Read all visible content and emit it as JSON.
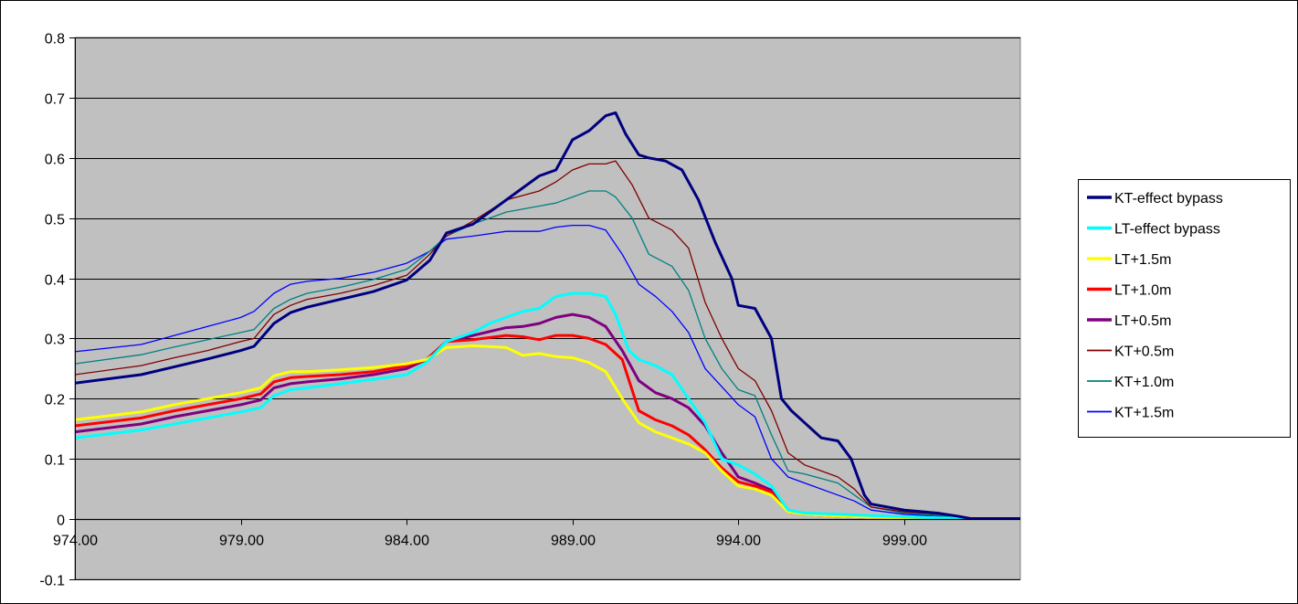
{
  "chart_data": {
    "type": "line",
    "title": "",
    "xlabel": "",
    "ylabel": "",
    "xlim": [
      974,
      1002.5
    ],
    "ylim": [
      -0.1,
      0.8
    ],
    "x_ticks": [
      974,
      979,
      984,
      989,
      994,
      999
    ],
    "x_tick_labels": [
      "974.00",
      "979.00",
      "984.00",
      "989.00",
      "994.00",
      "999.00"
    ],
    "y_ticks": [
      -0.1,
      0,
      0.1,
      0.2,
      0.3,
      0.4,
      0.5,
      0.6,
      0.7,
      0.8
    ],
    "y_tick_labels": [
      "-0.1",
      "0",
      "0.1",
      "0.2",
      "0.3",
      "0.4",
      "0.5",
      "0.6",
      "0.7",
      "0.8"
    ],
    "grid": "horizontal",
    "plot_background": "#c0c0c0",
    "legend_position": "right",
    "series": [
      {
        "name": "KT-effect bypass",
        "color": "#000080",
        "width": 3,
        "x": [
          974,
          976,
          977,
          978,
          979,
          979.4,
          980,
          980.5,
          981,
          982,
          983,
          984,
          984.7,
          985.2,
          986,
          987,
          988,
          988.5,
          989,
          989.5,
          990,
          990.3,
          990.6,
          991,
          991.3,
          991.8,
          992.3,
          992.8,
          993.3,
          993.8,
          994,
          994.5,
          995,
          995.3,
          995.6,
          996,
          996.5,
          997,
          997.4,
          997.8,
          998,
          999,
          1000,
          1000.6,
          1001,
          1002.5
        ],
        "y": [
          0.226,
          0.24,
          0.253,
          0.266,
          0.28,
          0.287,
          0.325,
          0.343,
          0.352,
          0.365,
          0.378,
          0.397,
          0.43,
          0.475,
          0.49,
          0.53,
          0.57,
          0.58,
          0.63,
          0.645,
          0.67,
          0.675,
          0.64,
          0.605,
          0.6,
          0.595,
          0.58,
          0.53,
          0.46,
          0.4,
          0.355,
          0.35,
          0.3,
          0.2,
          0.18,
          0.16,
          0.135,
          0.13,
          0.1,
          0.04,
          0.025,
          0.015,
          0.01,
          0.005,
          0.001,
          0.001
        ]
      },
      {
        "name": "LT-effect bypass",
        "color": "#00ffff",
        "width": 3,
        "x": [
          974,
          976,
          977,
          978,
          979,
          979.6,
          980,
          980.5,
          981,
          982,
          983,
          984,
          984.6,
          985.2,
          986,
          986.5,
          987,
          987.5,
          988,
          988.5,
          989,
          989.5,
          990,
          990.3,
          990.7,
          991,
          991.5,
          992,
          992.5,
          993,
          993.5,
          994,
          994.5,
          995,
          995.5,
          996,
          997,
          998,
          999,
          1000,
          1001,
          1002.5
        ],
        "y": [
          0.135,
          0.148,
          0.158,
          0.168,
          0.178,
          0.185,
          0.205,
          0.215,
          0.218,
          0.225,
          0.232,
          0.24,
          0.26,
          0.295,
          0.31,
          0.325,
          0.335,
          0.345,
          0.35,
          0.37,
          0.375,
          0.375,
          0.37,
          0.34,
          0.28,
          0.265,
          0.255,
          0.24,
          0.2,
          0.16,
          0.1,
          0.09,
          0.075,
          0.055,
          0.015,
          0.01,
          0.008,
          0.006,
          0.004,
          0.002,
          0.001,
          0.001
        ]
      },
      {
        "name": "LT+1.5m",
        "color": "#ffff00",
        "width": 3,
        "x": [
          974,
          976,
          977,
          978,
          979,
          979.6,
          980,
          980.5,
          981,
          982,
          983,
          984,
          984.6,
          985.2,
          986,
          987,
          987.5,
          988,
          988.5,
          989,
          989.5,
          990,
          990.5,
          991,
          991.5,
          992,
          992.5,
          993,
          993.5,
          994,
          994.5,
          995,
          995.5,
          996,
          997,
          998,
          999,
          1000,
          1001,
          1002.5
        ],
        "y": [
          0.165,
          0.178,
          0.19,
          0.2,
          0.21,
          0.218,
          0.238,
          0.245,
          0.245,
          0.248,
          0.252,
          0.258,
          0.265,
          0.285,
          0.288,
          0.285,
          0.272,
          0.275,
          0.27,
          0.268,
          0.26,
          0.245,
          0.2,
          0.16,
          0.145,
          0.135,
          0.125,
          0.11,
          0.08,
          0.055,
          0.05,
          0.04,
          0.012,
          0.008,
          0.005,
          0.003,
          0.002,
          0.001,
          0.001,
          0.001
        ]
      },
      {
        "name": "LT+1.0m",
        "color": "#ff0000",
        "width": 3,
        "x": [
          974,
          976,
          977,
          978,
          979,
          979.6,
          980,
          980.5,
          981,
          982,
          983,
          984,
          984.6,
          985.2,
          986,
          987,
          987.5,
          988,
          988.5,
          989,
          989.5,
          990,
          990.5,
          991,
          991.5,
          992,
          992.5,
          993,
          993.5,
          994,
          994.5,
          995,
          995.5,
          996,
          997,
          998,
          999,
          1000,
          1001,
          1002.5
        ],
        "y": [
          0.155,
          0.168,
          0.18,
          0.19,
          0.2,
          0.208,
          0.228,
          0.235,
          0.237,
          0.24,
          0.245,
          0.255,
          0.265,
          0.295,
          0.298,
          0.305,
          0.303,
          0.298,
          0.305,
          0.305,
          0.3,
          0.29,
          0.265,
          0.18,
          0.165,
          0.155,
          0.14,
          0.115,
          0.085,
          0.062,
          0.055,
          0.045,
          0.012,
          0.008,
          0.005,
          0.003,
          0.002,
          0.001,
          0.001,
          0.001
        ]
      },
      {
        "name": "LT+0.5m",
        "color": "#800080",
        "width": 3,
        "x": [
          974,
          976,
          977,
          978,
          979,
          979.6,
          980,
          980.5,
          981,
          982,
          983,
          984,
          984.6,
          985.2,
          986,
          987,
          987.5,
          988,
          988.5,
          989,
          989.5,
          990,
          990.5,
          991,
          991.5,
          992,
          992.5,
          993,
          993.5,
          994,
          994.5,
          995,
          995.5,
          996,
          997,
          998,
          999,
          1000,
          1001,
          1002.5
        ],
        "y": [
          0.145,
          0.158,
          0.17,
          0.18,
          0.19,
          0.198,
          0.218,
          0.225,
          0.228,
          0.233,
          0.24,
          0.25,
          0.265,
          0.295,
          0.305,
          0.318,
          0.32,
          0.325,
          0.335,
          0.34,
          0.335,
          0.32,
          0.28,
          0.23,
          0.21,
          0.2,
          0.185,
          0.155,
          0.11,
          0.07,
          0.06,
          0.048,
          0.012,
          0.008,
          0.005,
          0.003,
          0.002,
          0.001,
          0.001,
          0.001
        ]
      },
      {
        "name": "KT+0.5m",
        "color": "#800000",
        "width": 1.3,
        "x": [
          974,
          976,
          977,
          978,
          979,
          979.4,
          980,
          980.5,
          981,
          982,
          983,
          984,
          984.7,
          985.2,
          986,
          987,
          988,
          988.5,
          989,
          989.5,
          990,
          990.3,
          990.8,
          991.3,
          992,
          992.5,
          993,
          993.5,
          994,
          994.5,
          995,
          995.5,
          996,
          997,
          997.5,
          998,
          999,
          1000,
          1000.6,
          1001,
          1002.5
        ],
        "y": [
          0.24,
          0.255,
          0.268,
          0.28,
          0.295,
          0.3,
          0.34,
          0.355,
          0.365,
          0.375,
          0.388,
          0.405,
          0.44,
          0.47,
          0.495,
          0.53,
          0.545,
          0.56,
          0.58,
          0.59,
          0.59,
          0.595,
          0.555,
          0.5,
          0.48,
          0.45,
          0.36,
          0.3,
          0.25,
          0.23,
          0.18,
          0.11,
          0.09,
          0.07,
          0.05,
          0.02,
          0.012,
          0.008,
          0.004,
          0.001,
          0.001
        ]
      },
      {
        "name": "KT+1.0m",
        "color": "#008080",
        "width": 1.3,
        "x": [
          974,
          976,
          977,
          978,
          979,
          979.4,
          980,
          980.5,
          981,
          982,
          983,
          984,
          984.7,
          985.2,
          986,
          987,
          988,
          988.5,
          989,
          989.5,
          990,
          990.3,
          990.8,
          991.3,
          992,
          992.5,
          993,
          993.5,
          994,
          994.5,
          995,
          995.5,
          996,
          997,
          997.5,
          998,
          999,
          1000,
          1000.6,
          1001,
          1002.5
        ],
        "y": [
          0.258,
          0.273,
          0.286,
          0.298,
          0.31,
          0.315,
          0.35,
          0.365,
          0.375,
          0.385,
          0.398,
          0.415,
          0.445,
          0.47,
          0.49,
          0.51,
          0.52,
          0.525,
          0.535,
          0.545,
          0.545,
          0.535,
          0.5,
          0.44,
          0.42,
          0.38,
          0.3,
          0.25,
          0.215,
          0.205,
          0.14,
          0.08,
          0.075,
          0.06,
          0.04,
          0.02,
          0.01,
          0.006,
          0.003,
          0.001,
          0.001
        ]
      },
      {
        "name": "KT+1.5m",
        "color": "#0000ff",
        "width": 1.3,
        "x": [
          974,
          976,
          977,
          978,
          979,
          979.4,
          980,
          980.5,
          981,
          982,
          983,
          984,
          984.7,
          985.2,
          986,
          987,
          988,
          988.5,
          989,
          989.5,
          990,
          990.5,
          991,
          991.5,
          992,
          992.5,
          993,
          993.5,
          994,
          994.5,
          995,
          995.5,
          996,
          997,
          997.5,
          998,
          999,
          1000,
          1000.6,
          1001,
          1002.5
        ],
        "y": [
          0.278,
          0.29,
          0.305,
          0.32,
          0.335,
          0.345,
          0.375,
          0.39,
          0.395,
          0.4,
          0.41,
          0.425,
          0.445,
          0.465,
          0.47,
          0.478,
          0.478,
          0.485,
          0.488,
          0.488,
          0.48,
          0.44,
          0.39,
          0.37,
          0.345,
          0.31,
          0.25,
          0.22,
          0.19,
          0.17,
          0.1,
          0.07,
          0.06,
          0.04,
          0.03,
          0.015,
          0.008,
          0.005,
          0.003,
          0.001,
          0.001
        ]
      }
    ]
  }
}
